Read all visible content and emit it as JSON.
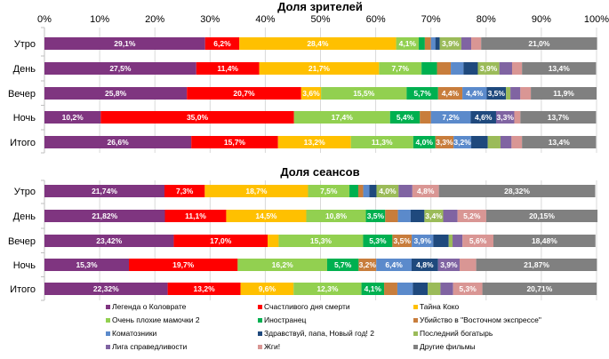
{
  "colors": [
    "#7F3580",
    "#FF0000",
    "#FFC000",
    "#92D050",
    "#00B050",
    "#C87D3C",
    "#5B8ACB",
    "#1F497D",
    "#9BBB59",
    "#8064A2",
    "#D99694",
    "#808080"
  ],
  "legend": [
    "Легенда о Коловрате",
    "Счастливого дня смерти",
    "Тайна Коко",
    "Очень плохие мамочки 2",
    "Иностранец",
    "Убийство в \"Восточном экспрессе\"",
    "Коматозники",
    "Здравствуй, папа, Новый год! 2",
    "Последний богатырь",
    "Лига справедливости",
    "Жги!",
    "Другие фильмы"
  ],
  "chart_data": [
    {
      "type": "bar",
      "stacked": true,
      "orientation": "horizontal",
      "title": "Доля зрителей",
      "xlim": [
        0,
        100
      ],
      "x_ticks": [
        "0%",
        "10%",
        "20%",
        "30%",
        "40%",
        "50%",
        "60%",
        "70%",
        "80%",
        "90%",
        "100%"
      ],
      "grid": true,
      "legend_position": "bottom",
      "categories": [
        "Утро",
        "День",
        "Вечер",
        "Ночь",
        "Итого"
      ],
      "values": [
        [
          29.1,
          6.2,
          28.4,
          4.1,
          1.1,
          1.1,
          0.8,
          0.8,
          3.9,
          1.8,
          1.8,
          21.0
        ],
        [
          27.5,
          11.4,
          21.7,
          7.7,
          2.8,
          2.5,
          2.3,
          2.6,
          3.9,
          2.3,
          1.8,
          13.4
        ],
        [
          25.8,
          20.7,
          3.6,
          15.5,
          5.7,
          4.4,
          4.4,
          3.5,
          0.8,
          1.8,
          1.9,
          11.9
        ],
        [
          10.2,
          35.0,
          0,
          17.4,
          5.4,
          2.0,
          7.2,
          4.6,
          0,
          3.3,
          1.1,
          13.7
        ],
        [
          26.6,
          15.7,
          13.2,
          11.3,
          4.0,
          3.3,
          3.2,
          3.0,
          2.3,
          2.0,
          1.9,
          13.4
        ]
      ],
      "labels": [
        [
          "29,1%",
          "6,2%",
          "28,4%",
          "4,1%",
          "",
          "",
          "",
          "",
          "3,9%",
          "",
          "",
          "21,0%"
        ],
        [
          "27,5%",
          "11,4%",
          "21,7%",
          "7,7%",
          "",
          "",
          "",
          "",
          "3,9%",
          "",
          "",
          "13,4%"
        ],
        [
          "25,8%",
          "20,7%",
          "3,6%",
          "15,5%",
          "5,7%",
          "4,4%",
          "4,4%",
          "3,5%",
          "",
          "",
          "",
          "11,9%"
        ],
        [
          "10,2%",
          "35,0%",
          "",
          "17,4%",
          "5,4%",
          "",
          "7,2%",
          "4,6%",
          "",
          "3,3%",
          "",
          "13,7%"
        ],
        [
          "26,6%",
          "15,7%",
          "13,2%",
          "11,3%",
          "4,0%",
          "3,3%",
          "3,2%",
          "",
          "",
          "",
          "",
          "13,4%"
        ]
      ]
    },
    {
      "type": "bar",
      "stacked": true,
      "orientation": "horizontal",
      "title": "Доля сеансов",
      "xlim": [
        0,
        100
      ],
      "grid": true,
      "legend_position": "bottom",
      "categories": [
        "Утро",
        "День",
        "Вечер",
        "Ночь",
        "Итого"
      ],
      "values": [
        [
          21.74,
          7.3,
          18.7,
          7.5,
          1.6,
          0.9,
          1.1,
          1.3,
          4.0,
          2.5,
          4.8,
          28.32
        ],
        [
          21.82,
          11.1,
          14.5,
          10.8,
          3.5,
          2.3,
          2.3,
          2.5,
          3.4,
          2.6,
          5.2,
          20.15
        ],
        [
          23.42,
          17.0,
          2.0,
          15.3,
          5.3,
          3.5,
          3.9,
          2.8,
          0.7,
          1.8,
          5.6,
          18.48
        ],
        [
          15.3,
          19.7,
          0,
          16.2,
          5.7,
          3.2,
          6.4,
          4.8,
          0,
          3.9,
          3.0,
          21.87
        ],
        [
          22.32,
          13.2,
          9.6,
          12.3,
          4.1,
          2.4,
          2.8,
          2.7,
          2.3,
          2.3,
          5.3,
          20.71
        ]
      ],
      "labels": [
        [
          "21,74%",
          "7,3%",
          "18,7%",
          "7,5%",
          "",
          "",
          "",
          "",
          "4,0%",
          "",
          "4,8%",
          "28,32%"
        ],
        [
          "21,82%",
          "11,1%",
          "14,5%",
          "10,8%",
          "3,5%",
          "",
          "",
          "",
          "3,4%",
          "",
          "5,2%",
          "20,15%"
        ],
        [
          "23,42%",
          "17,0%",
          "",
          "15,3%",
          "5,3%",
          "3,5%",
          "3,9%",
          "",
          "",
          "",
          "5,6%",
          "18,48%"
        ],
        [
          "15,3%",
          "19,7%",
          "",
          "16,2%",
          "5,7%",
          "3,2%",
          "6,4%",
          "4,8%",
          "",
          "3,9%",
          "",
          "21,87%"
        ],
        [
          "22,32%",
          "13,2%",
          "9,6%",
          "12,3%",
          "4,1%",
          "",
          "",
          "",
          "",
          "",
          "5,3%",
          "20,71%"
        ]
      ]
    }
  ]
}
